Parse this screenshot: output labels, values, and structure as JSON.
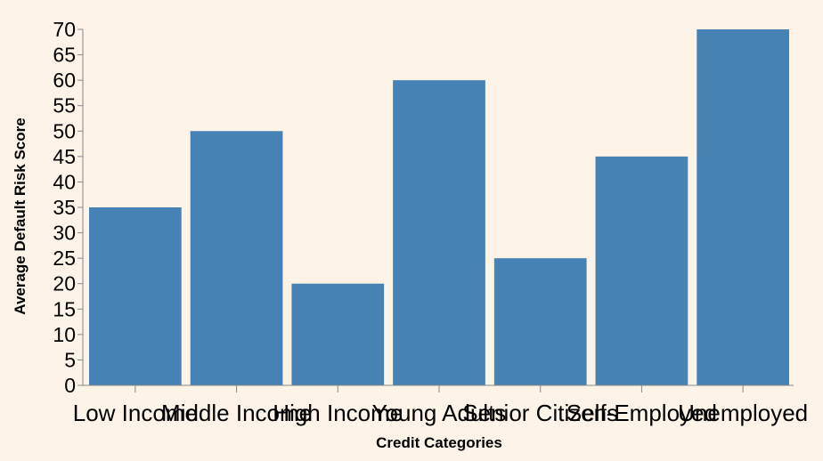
{
  "chart_data": {
    "type": "bar",
    "categories": [
      "Low Income",
      "Middle Income",
      "High Income",
      "Young Adults",
      "Senior Citizens",
      "Self-Employed",
      "Unemployed"
    ],
    "values": [
      35,
      50,
      20,
      60,
      25,
      45,
      70
    ],
    "xlabel": "Credit Categories",
    "ylabel": "Average Default Risk Score",
    "ylim": [
      0,
      70
    ],
    "yticks": [
      0,
      5,
      10,
      15,
      20,
      25,
      30,
      35,
      40,
      45,
      50,
      55,
      60,
      65,
      70
    ],
    "grid": false,
    "bar_color": "#4682b4",
    "background_color": "#fdf3e6"
  }
}
